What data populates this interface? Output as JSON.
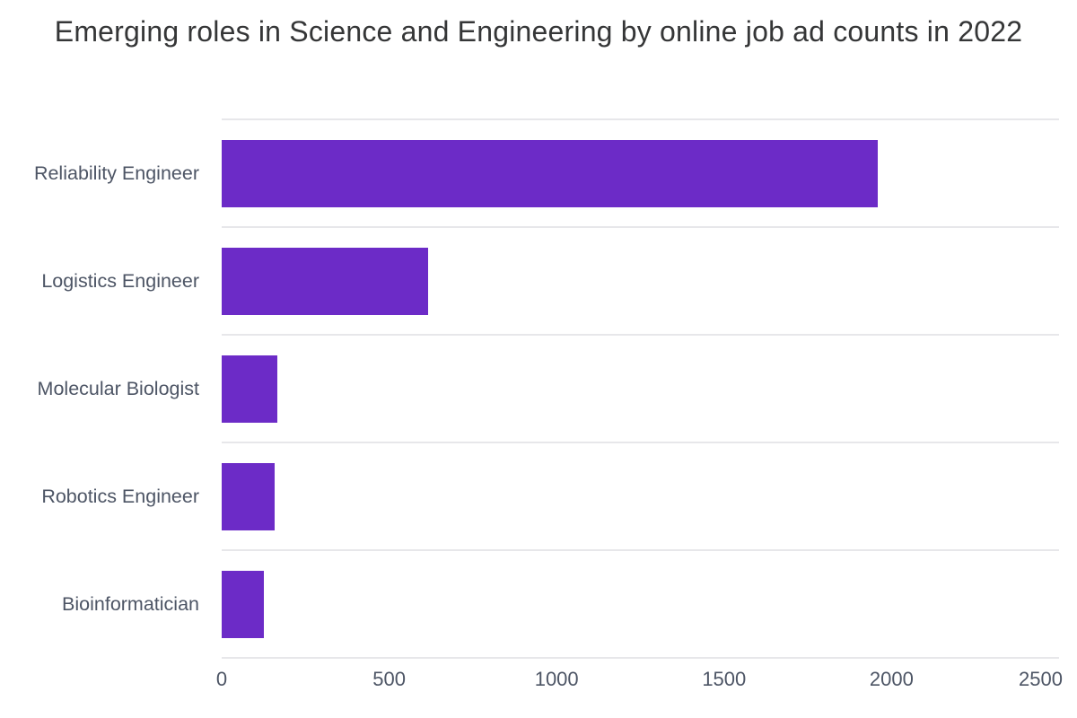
{
  "title": "Emerging roles in Science and Engineering by online job ad counts in 2022",
  "colors": {
    "bar": "#6c2bc7",
    "gridline": "#e7e7ea",
    "axis_text": "#4d5565",
    "title_text": "#353637",
    "background": "#ffffff"
  },
  "chart_data": {
    "type": "bar",
    "orientation": "horizontal",
    "title": "Emerging roles in Science and Engineering by online job ad counts in 2022",
    "categories": [
      "Reliability Engineer",
      "Logistics Engineer",
      "Molecular Biologist",
      "Robotics Engineer",
      "Bioinformatician"
    ],
    "values": [
      1960,
      617,
      165,
      158,
      126
    ],
    "series_name": "online job ad counts",
    "xlabel": "",
    "ylabel": "",
    "xlim": [
      0,
      2500
    ],
    "x_ticks": [
      "0",
      "500",
      "1000",
      "1500",
      "2000",
      "2500"
    ],
    "grid": "horizontal-category-separators",
    "legend": "none"
  }
}
